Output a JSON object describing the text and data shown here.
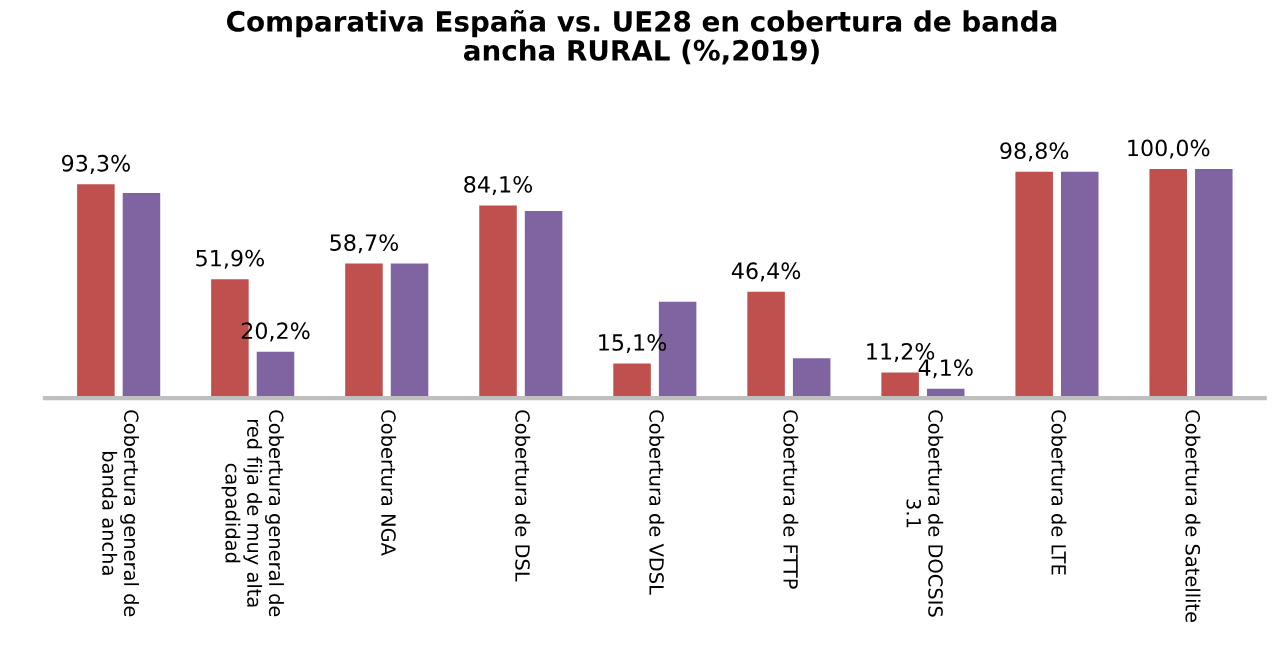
{
  "chart_data": {
    "type": "bar",
    "title": "Comparativa España vs. UE28 en cobertura de banda\nancha RURAL (%,2019)",
    "categories": [
      "Cobertura general de\nbanda ancha",
      "Cobertura general de\nred fija de muy alta\ncapadidad",
      "Cobertura NGA",
      "Cobertura de DSL",
      "Cobertura de VDSL",
      "Cobertura de FTTP",
      "Cobertura de DOCSIS\n3.1",
      "Cobertura de LTE",
      "Cobertura de Satellite"
    ],
    "series": [
      {
        "color": "#c0504d",
        "values": [
          93.3,
          51.9,
          58.7,
          84.1,
          15.1,
          46.4,
          11.2,
          98.8,
          100.0
        ],
        "value_labels": [
          "93,3%",
          "51,9%",
          "58,7%",
          "84,1%",
          "15,1%",
          "46,4%",
          "11,2%",
          "98,8%",
          "100,0%"
        ]
      },
      {
        "color": "#8064a2",
        "values": [
          89.5,
          20.2,
          58.7,
          81.6,
          42,
          17.4,
          4.1,
          98.8,
          100.0
        ],
        "value_labels": [
          null,
          "20,2%",
          null,
          null,
          null,
          null,
          "4,1%",
          null,
          null
        ]
      }
    ],
    "tick_labels": "x",
    "grid": false
  }
}
